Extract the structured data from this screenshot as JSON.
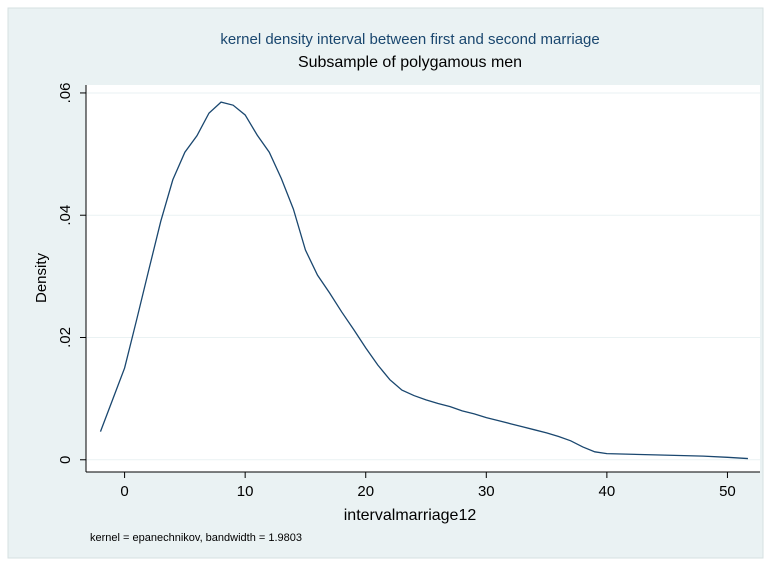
{
  "chart_data": {
    "type": "line",
    "title": "kernel density interval between first and second marriage",
    "subtitle": "Subsample of polygamous men",
    "xlabel": "intervalmarriage12",
    "ylabel": "Density",
    "note": "kernel = epanechnikov, bandwidth = 1.9803",
    "x": [
      -2,
      -1,
      0,
      1,
      2,
      3,
      4,
      5,
      6,
      7,
      8,
      9,
      10,
      11,
      12,
      13,
      14,
      15,
      16,
      17,
      18,
      19,
      20,
      21,
      22,
      23,
      24,
      25,
      26,
      27,
      28,
      29,
      30,
      31,
      32,
      33,
      34,
      35,
      36,
      37,
      38,
      39,
      40,
      42,
      44,
      46,
      48,
      50,
      51.7
    ],
    "values": [
      0.0046,
      0.0098,
      0.015,
      0.0229,
      0.031,
      0.039,
      0.0458,
      0.0503,
      0.053,
      0.0567,
      0.0585,
      0.058,
      0.0564,
      0.0531,
      0.0503,
      0.046,
      0.041,
      0.0343,
      0.0302,
      0.0273,
      0.0242,
      0.0213,
      0.0183,
      0.0155,
      0.0131,
      0.0114,
      0.0105,
      0.0098,
      0.0092,
      0.0087,
      0.008,
      0.0075,
      0.0069,
      0.0064,
      0.0059,
      0.0054,
      0.0049,
      0.0044,
      0.0038,
      0.0031,
      0.0021,
      0.0013,
      0.001,
      0.0009,
      0.0008,
      0.0007,
      0.0006,
      0.0004,
      0.0002
    ],
    "color": "#1a476f",
    "xlim": [
      -3.2,
      52.7
    ],
    "ylim": [
      -0.002,
      0.0613
    ],
    "xticks": [
      0,
      10,
      20,
      30,
      40,
      50
    ],
    "yticks": [
      0,
      {
        "value": 0.02,
        "label": ".02"
      },
      {
        "value": 0.04,
        "label": ".04"
      },
      {
        "value": 0.06,
        "label": ".06"
      }
    ],
    "grid": true
  }
}
